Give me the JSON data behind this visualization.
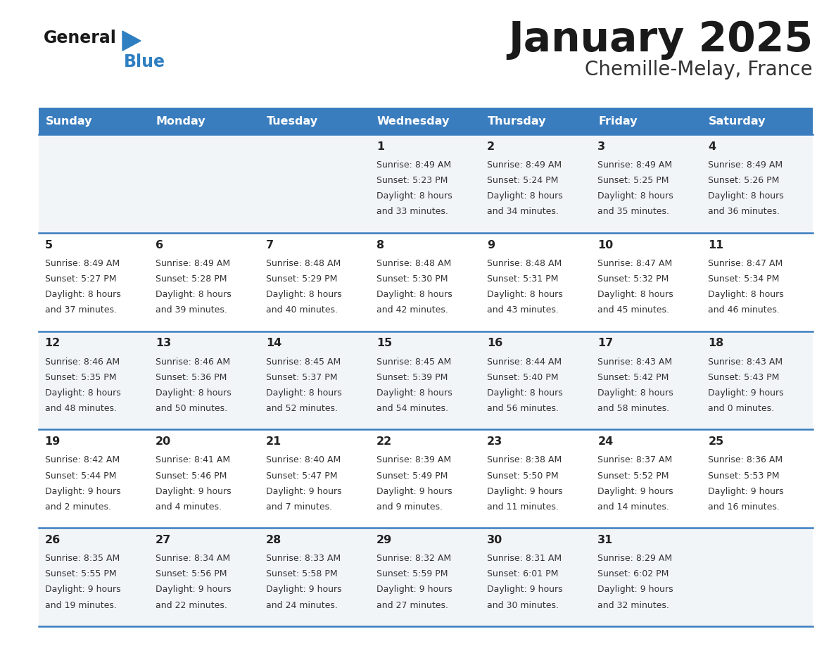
{
  "title": "January 2025",
  "subtitle": "Chemille-Melay, France",
  "days_of_week": [
    "Sunday",
    "Monday",
    "Tuesday",
    "Wednesday",
    "Thursday",
    "Friday",
    "Saturday"
  ],
  "header_bg": "#3a7dbf",
  "header_text": "#ffffff",
  "row_bg_odd": "#f2f5f8",
  "row_bg_even": "#ffffff",
  "border_color": "#3a7dbf",
  "day_num_color": "#222222",
  "cell_text_color": "#333333",
  "title_color": "#1a1a1a",
  "subtitle_color": "#333333",
  "logo_text_color": "#1a1a1a",
  "logo_blue_color": "#2d7fc1",
  "logo_triangle_color": "#2d7fc1",
  "calendar_data": [
    [
      null,
      null,
      null,
      {
        "day": 1,
        "sunrise": "8:49 AM",
        "sunset": "5:23 PM",
        "daylight": "8 hours and 33 minutes"
      },
      {
        "day": 2,
        "sunrise": "8:49 AM",
        "sunset": "5:24 PM",
        "daylight": "8 hours and 34 minutes"
      },
      {
        "day": 3,
        "sunrise": "8:49 AM",
        "sunset": "5:25 PM",
        "daylight": "8 hours and 35 minutes"
      },
      {
        "day": 4,
        "sunrise": "8:49 AM",
        "sunset": "5:26 PM",
        "daylight": "8 hours and 36 minutes"
      }
    ],
    [
      {
        "day": 5,
        "sunrise": "8:49 AM",
        "sunset": "5:27 PM",
        "daylight": "8 hours and 37 minutes"
      },
      {
        "day": 6,
        "sunrise": "8:49 AM",
        "sunset": "5:28 PM",
        "daylight": "8 hours and 39 minutes"
      },
      {
        "day": 7,
        "sunrise": "8:48 AM",
        "sunset": "5:29 PM",
        "daylight": "8 hours and 40 minutes"
      },
      {
        "day": 8,
        "sunrise": "8:48 AM",
        "sunset": "5:30 PM",
        "daylight": "8 hours and 42 minutes"
      },
      {
        "day": 9,
        "sunrise": "8:48 AM",
        "sunset": "5:31 PM",
        "daylight": "8 hours and 43 minutes"
      },
      {
        "day": 10,
        "sunrise": "8:47 AM",
        "sunset": "5:32 PM",
        "daylight": "8 hours and 45 minutes"
      },
      {
        "day": 11,
        "sunrise": "8:47 AM",
        "sunset": "5:34 PM",
        "daylight": "8 hours and 46 minutes"
      }
    ],
    [
      {
        "day": 12,
        "sunrise": "8:46 AM",
        "sunset": "5:35 PM",
        "daylight": "8 hours and 48 minutes"
      },
      {
        "day": 13,
        "sunrise": "8:46 AM",
        "sunset": "5:36 PM",
        "daylight": "8 hours and 50 minutes"
      },
      {
        "day": 14,
        "sunrise": "8:45 AM",
        "sunset": "5:37 PM",
        "daylight": "8 hours and 52 minutes"
      },
      {
        "day": 15,
        "sunrise": "8:45 AM",
        "sunset": "5:39 PM",
        "daylight": "8 hours and 54 minutes"
      },
      {
        "day": 16,
        "sunrise": "8:44 AM",
        "sunset": "5:40 PM",
        "daylight": "8 hours and 56 minutes"
      },
      {
        "day": 17,
        "sunrise": "8:43 AM",
        "sunset": "5:42 PM",
        "daylight": "8 hours and 58 minutes"
      },
      {
        "day": 18,
        "sunrise": "8:43 AM",
        "sunset": "5:43 PM",
        "daylight": "9 hours and 0 minutes"
      }
    ],
    [
      {
        "day": 19,
        "sunrise": "8:42 AM",
        "sunset": "5:44 PM",
        "daylight": "9 hours and 2 minutes"
      },
      {
        "day": 20,
        "sunrise": "8:41 AM",
        "sunset": "5:46 PM",
        "daylight": "9 hours and 4 minutes"
      },
      {
        "day": 21,
        "sunrise": "8:40 AM",
        "sunset": "5:47 PM",
        "daylight": "9 hours and 7 minutes"
      },
      {
        "day": 22,
        "sunrise": "8:39 AM",
        "sunset": "5:49 PM",
        "daylight": "9 hours and 9 minutes"
      },
      {
        "day": 23,
        "sunrise": "8:38 AM",
        "sunset": "5:50 PM",
        "daylight": "9 hours and 11 minutes"
      },
      {
        "day": 24,
        "sunrise": "8:37 AM",
        "sunset": "5:52 PM",
        "daylight": "9 hours and 14 minutes"
      },
      {
        "day": 25,
        "sunrise": "8:36 AM",
        "sunset": "5:53 PM",
        "daylight": "9 hours and 16 minutes"
      }
    ],
    [
      {
        "day": 26,
        "sunrise": "8:35 AM",
        "sunset": "5:55 PM",
        "daylight": "9 hours and 19 minutes"
      },
      {
        "day": 27,
        "sunrise": "8:34 AM",
        "sunset": "5:56 PM",
        "daylight": "9 hours and 22 minutes"
      },
      {
        "day": 28,
        "sunrise": "8:33 AM",
        "sunset": "5:58 PM",
        "daylight": "9 hours and 24 minutes"
      },
      {
        "day": 29,
        "sunrise": "8:32 AM",
        "sunset": "5:59 PM",
        "daylight": "9 hours and 27 minutes"
      },
      {
        "day": 30,
        "sunrise": "8:31 AM",
        "sunset": "6:01 PM",
        "daylight": "9 hours and 30 minutes"
      },
      {
        "day": 31,
        "sunrise": "8:29 AM",
        "sunset": "6:02 PM",
        "daylight": "9 hours and 32 minutes"
      },
      null
    ]
  ]
}
